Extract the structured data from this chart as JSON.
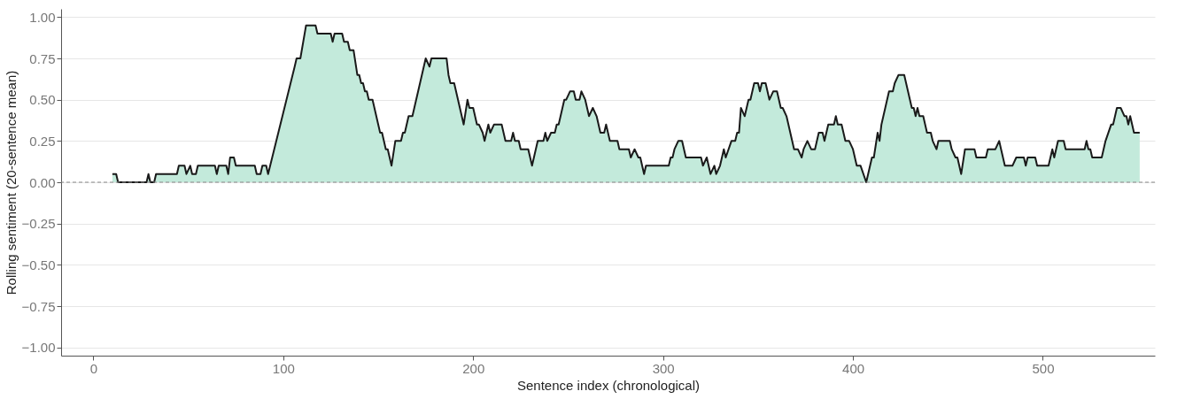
{
  "chart_data": {
    "type": "area",
    "xlabel": "Sentence index (chronological)",
    "ylabel": "Rolling sentiment (20-sentence mean)",
    "xlim": [
      -17,
      559
    ],
    "ylim": [
      -1.05,
      1.05
    ],
    "xticks": [
      0,
      100,
      200,
      300,
      400,
      500
    ],
    "yticks": [
      {
        "value": -1,
        "label": "−1.00"
      },
      {
        "value": -0.75,
        "label": "−0.75"
      },
      {
        "value": -0.5,
        "label": "−0.50"
      },
      {
        "value": -0.25,
        "label": "−0.25"
      },
      {
        "value": 0,
        "label": "0.00"
      },
      {
        "value": 0.25,
        "label": "0.25"
      },
      {
        "value": 0.5,
        "label": "0.50"
      },
      {
        "value": 0.75,
        "label": "0.75"
      },
      {
        "value": 1,
        "label": "1.00"
      }
    ],
    "grid": "y",
    "marker": "none",
    "line_style": "solid",
    "ref_lines": [
      {
        "axis": "y",
        "value": 0,
        "color": "#888888",
        "line_style": "dashed"
      }
    ],
    "series": [
      {
        "color": "#c3eadb",
        "x": [
          10,
          12,
          13,
          28,
          29,
          30,
          32,
          33,
          44,
          45,
          48,
          49,
          51,
          52,
          54,
          55,
          64,
          65,
          66,
          70,
          71,
          72,
          74,
          75,
          85,
          86,
          88,
          89,
          91,
          92,
          106,
          107,
          109,
          112,
          117,
          118,
          125,
          126,
          127,
          131,
          132,
          134,
          135,
          137,
          139,
          140,
          141,
          142,
          143,
          144,
          145,
          147,
          151,
          152,
          154,
          155,
          157,
          159,
          162,
          163,
          164,
          166,
          168,
          175,
          177,
          178,
          186,
          187,
          188,
          190,
          195,
          197,
          198,
          200,
          202,
          203,
          205,
          206,
          208,
          209,
          211,
          215,
          217,
          220,
          221,
          222,
          224,
          225,
          229,
          231,
          234,
          237,
          238,
          239,
          241,
          243,
          244,
          245,
          248,
          249,
          251,
          253,
          254,
          256,
          257,
          259,
          261,
          263,
          265,
          267,
          269,
          270,
          272,
          276,
          277,
          282,
          283,
          285,
          287,
          288,
          290,
          291,
          303,
          304,
          305,
          306,
          308,
          310,
          312,
          320,
          321,
          323,
          325,
          327,
          328,
          330,
          332,
          333,
          336,
          338,
          339,
          340,
          341,
          343,
          345,
          346,
          348,
          350,
          351,
          352,
          354,
          356,
          358,
          360,
          362,
          363,
          365,
          369,
          371,
          373,
          374,
          376,
          378,
          380,
          382,
          384,
          385,
          387,
          390,
          391,
          392,
          394,
          396,
          398,
          400,
          402,
          404,
          407,
          410,
          411,
          413,
          414,
          415,
          419,
          421,
          422,
          424,
          427,
          431,
          432,
          433,
          434,
          435,
          437,
          439,
          441,
          442,
          444,
          445,
          451,
          452,
          454,
          455,
          457,
          459,
          464,
          465,
          470,
          471,
          475,
          477,
          478,
          480,
          484,
          486,
          490,
          491,
          492,
          496,
          497,
          503,
          505,
          506,
          508,
          511,
          512,
          522,
          523,
          524,
          525,
          526,
          531,
          533,
          536,
          537,
          539,
          541,
          543,
          544,
          545,
          546,
          548,
          551
        ],
        "values": [
          0.05,
          0.05,
          0,
          0,
          0.05,
          0,
          0,
          0.05,
          0.05,
          0.1,
          0.1,
          0.05,
          0.1,
          0.05,
          0.05,
          0.1,
          0.1,
          0.05,
          0.1,
          0.1,
          0.05,
          0.15,
          0.15,
          0.1,
          0.1,
          0.05,
          0.05,
          0.1,
          0.1,
          0.05,
          0.7,
          0.75,
          0.75,
          0.95,
          0.95,
          0.9,
          0.9,
          0.85,
          0.9,
          0.9,
          0.85,
          0.85,
          0.8,
          0.8,
          0.65,
          0.65,
          0.6,
          0.6,
          0.55,
          0.55,
          0.5,
          0.5,
          0.3,
          0.3,
          0.2,
          0.2,
          0.1,
          0.25,
          0.25,
          0.3,
          0.3,
          0.4,
          0.4,
          0.75,
          0.7,
          0.75,
          0.75,
          0.65,
          0.6,
          0.6,
          0.35,
          0.5,
          0.45,
          0.45,
          0.35,
          0.35,
          0.3,
          0.25,
          0.35,
          0.3,
          0.35,
          0.35,
          0.25,
          0.25,
          0.3,
          0.25,
          0.25,
          0.2,
          0.2,
          0.1,
          0.25,
          0.25,
          0.3,
          0.25,
          0.3,
          0.3,
          0.35,
          0.35,
          0.5,
          0.5,
          0.55,
          0.55,
          0.5,
          0.5,
          0.55,
          0.5,
          0.4,
          0.45,
          0.4,
          0.3,
          0.3,
          0.35,
          0.25,
          0.25,
          0.2,
          0.2,
          0.15,
          0.2,
          0.15,
          0.15,
          0.05,
          0.1,
          0.1,
          0.15,
          0.15,
          0.2,
          0.25,
          0.25,
          0.15,
          0.15,
          0.1,
          0.15,
          0.05,
          0.1,
          0.05,
          0.1,
          0.2,
          0.15,
          0.25,
          0.25,
          0.3,
          0.3,
          0.45,
          0.4,
          0.5,
          0.5,
          0.6,
          0.6,
          0.55,
          0.6,
          0.6,
          0.5,
          0.55,
          0.55,
          0.45,
          0.45,
          0.4,
          0.2,
          0.2,
          0.15,
          0.2,
          0.25,
          0.2,
          0.2,
          0.3,
          0.3,
          0.25,
          0.35,
          0.35,
          0.4,
          0.35,
          0.35,
          0.25,
          0.25,
          0.2,
          0.1,
          0.1,
          0,
          0.15,
          0.15,
          0.3,
          0.25,
          0.35,
          0.55,
          0.55,
          0.6,
          0.65,
          0.65,
          0.45,
          0.45,
          0.4,
          0.45,
          0.4,
          0.4,
          0.3,
          0.3,
          0.25,
          0.2,
          0.25,
          0.25,
          0.2,
          0.15,
          0.15,
          0.05,
          0.2,
          0.2,
          0.15,
          0.15,
          0.2,
          0.2,
          0.25,
          0.2,
          0.1,
          0.1,
          0.15,
          0.15,
          0.1,
          0.15,
          0.15,
          0.1,
          0.1,
          0.2,
          0.15,
          0.25,
          0.25,
          0.2,
          0.2,
          0.25,
          0.2,
          0.2,
          0.15,
          0.15,
          0.25,
          0.35,
          0.35,
          0.45,
          0.45,
          0.4,
          0.4,
          0.35,
          0.4,
          0.3,
          0.3
        ]
      }
    ]
  }
}
